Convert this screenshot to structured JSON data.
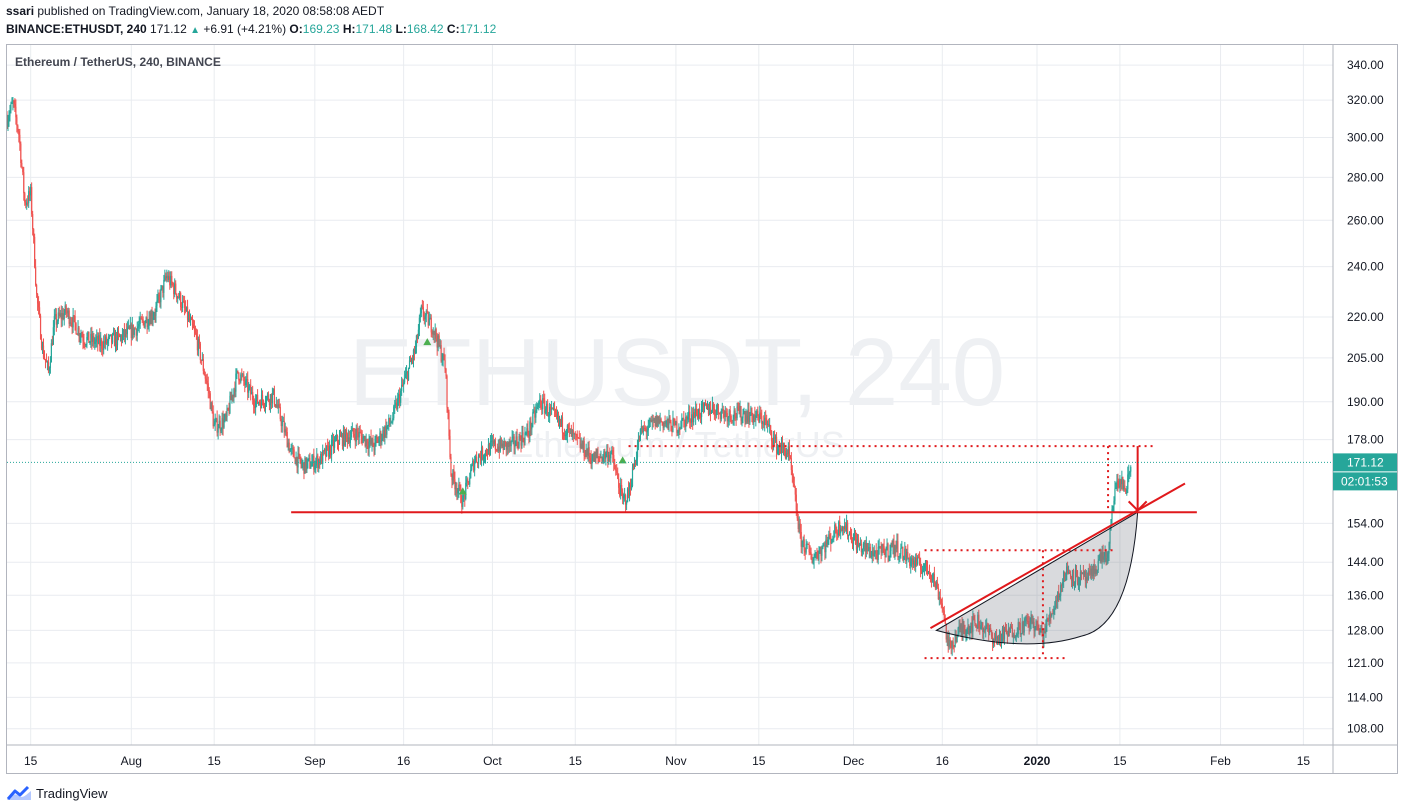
{
  "publish": {
    "user": "ssari",
    "text": "published on TradingView.com, January 18, 2020 08:58:08 AEDT"
  },
  "quote": {
    "symbol": "BINANCE:ETHUSDT, 240",
    "last": "171.12",
    "change": "+6.91 (+4.21%)",
    "o_label": "O:",
    "o": "169.23",
    "h_label": "H:",
    "h": "171.48",
    "l_label": "L:",
    "l": "168.42",
    "c_label": "C:",
    "c": "171.12"
  },
  "chart_title": "Ethereum / TetherUS, 240, BINANCE",
  "watermark": {
    "main": "ETHUSDT, 240",
    "sub": "Ethereum / TetherUS"
  },
  "price_tag": {
    "price": "171.12",
    "timer": "02:01:53"
  },
  "footer": {
    "brand": "TradingView"
  },
  "colors": {
    "up": "#26a69a",
    "down": "#ef5350",
    "drawing": "#e0191c",
    "tag": "#26a69a"
  },
  "chart_data": {
    "type": "candlestick",
    "title": "Ethereum / TetherUS, 240, BINANCE",
    "y_scale": "log",
    "ylim": [
      105,
      352
    ],
    "y_ticks": [
      340,
      320,
      300,
      280,
      260,
      240,
      220,
      205,
      190,
      178,
      171.12,
      154,
      144,
      136,
      128,
      121,
      114,
      108
    ],
    "y_tick_labels": [
      "340.00",
      "320.00",
      "300.00",
      "280.00",
      "260.00",
      "240.00",
      "220.00",
      "205.00",
      "190.00",
      "178.00",
      "171.12",
      "154.00",
      "144.00",
      "136.00",
      "128.00",
      "121.00",
      "114.00",
      "108.00"
    ],
    "x_range": [
      "2019-07-11",
      "2020-02-20"
    ],
    "x_ticks": [
      {
        "date": "2019-07-15",
        "label": "15"
      },
      {
        "date": "2019-08-01",
        "label": "Aug"
      },
      {
        "date": "2019-08-15",
        "label": "15"
      },
      {
        "date": "2019-09-01",
        "label": "Sep"
      },
      {
        "date": "2019-09-16",
        "label": "16"
      },
      {
        "date": "2019-10-01",
        "label": "Oct"
      },
      {
        "date": "2019-10-15",
        "label": "15"
      },
      {
        "date": "2019-11-01",
        "label": "Nov"
      },
      {
        "date": "2019-11-15",
        "label": "15"
      },
      {
        "date": "2019-12-01",
        "label": "Dec"
      },
      {
        "date": "2019-12-16",
        "label": "16"
      },
      {
        "date": "2020-01-01",
        "label": "2020",
        "bold": true
      },
      {
        "date": "2020-01-15",
        "label": "15"
      },
      {
        "date": "2020-02-01",
        "label": "Feb"
      },
      {
        "date": "2020-02-15",
        "label": "15"
      }
    ],
    "price_path": [
      [
        "2019-07-11",
        310
      ],
      [
        "2019-07-12",
        318
      ],
      [
        "2019-07-13",
        302
      ],
      [
        "2019-07-14",
        268
      ],
      [
        "2019-07-15",
        272
      ],
      [
        "2019-07-16",
        228
      ],
      [
        "2019-07-17",
        208
      ],
      [
        "2019-07-18",
        200
      ],
      [
        "2019-07-19",
        218
      ],
      [
        "2019-07-21",
        222
      ],
      [
        "2019-07-24",
        212
      ],
      [
        "2019-07-27",
        210
      ],
      [
        "2019-07-30",
        212
      ],
      [
        "2019-08-02",
        216
      ],
      [
        "2019-08-05",
        222
      ],
      [
        "2019-08-07",
        236
      ],
      [
        "2019-08-09",
        228
      ],
      [
        "2019-08-12",
        212
      ],
      [
        "2019-08-14",
        194
      ],
      [
        "2019-08-15",
        182
      ],
      [
        "2019-08-17",
        184
      ],
      [
        "2019-08-19",
        200
      ],
      [
        "2019-08-22",
        190
      ],
      [
        "2019-08-25",
        192
      ],
      [
        "2019-08-28",
        174
      ],
      [
        "2019-08-30",
        170
      ],
      [
        "2019-09-02",
        172
      ],
      [
        "2019-09-05",
        178
      ],
      [
        "2019-09-08",
        180
      ],
      [
        "2019-09-11",
        176
      ],
      [
        "2019-09-14",
        184
      ],
      [
        "2019-09-16",
        196
      ],
      [
        "2019-09-18",
        208
      ],
      [
        "2019-09-19",
        222
      ],
      [
        "2019-09-21",
        216
      ],
      [
        "2019-09-23",
        202
      ],
      [
        "2019-09-24",
        168
      ],
      [
        "2019-09-26",
        160
      ],
      [
        "2019-09-28",
        172
      ],
      [
        "2019-10-01",
        176
      ],
      [
        "2019-10-04",
        176
      ],
      [
        "2019-10-07",
        180
      ],
      [
        "2019-10-09",
        190
      ],
      [
        "2019-10-12",
        184
      ],
      [
        "2019-10-15",
        178
      ],
      [
        "2019-10-18",
        172
      ],
      [
        "2019-10-21",
        174
      ],
      [
        "2019-10-23",
        160
      ],
      [
        "2019-10-24",
        162
      ],
      [
        "2019-10-26",
        180
      ],
      [
        "2019-10-29",
        184
      ],
      [
        "2019-11-01",
        182
      ],
      [
        "2019-11-04",
        186
      ],
      [
        "2019-11-07",
        188
      ],
      [
        "2019-11-10",
        186
      ],
      [
        "2019-11-13",
        186
      ],
      [
        "2019-11-16",
        184
      ],
      [
        "2019-11-18",
        176
      ],
      [
        "2019-11-20",
        174
      ],
      [
        "2019-11-22",
        150
      ],
      [
        "2019-11-24",
        145
      ],
      [
        "2019-11-26",
        148
      ],
      [
        "2019-11-29",
        154
      ],
      [
        "2019-12-02",
        148
      ],
      [
        "2019-12-05",
        146
      ],
      [
        "2019-12-08",
        148
      ],
      [
        "2019-12-11",
        144
      ],
      [
        "2019-12-14",
        142
      ],
      [
        "2019-12-16",
        134
      ],
      [
        "2019-12-17",
        124
      ],
      [
        "2019-12-19",
        128
      ],
      [
        "2019-12-22",
        130
      ],
      [
        "2019-12-25",
        126
      ],
      [
        "2019-12-28",
        128
      ],
      [
        "2019-12-31",
        130
      ],
      [
        "2020-01-02",
        127
      ],
      [
        "2020-01-04",
        134
      ],
      [
        "2020-01-06",
        142
      ],
      [
        "2020-01-08",
        140
      ],
      [
        "2020-01-10",
        140
      ],
      [
        "2020-01-12",
        146
      ],
      [
        "2020-01-13",
        145
      ],
      [
        "2020-01-14",
        162
      ],
      [
        "2020-01-15",
        166
      ],
      [
        "2020-01-16",
        163
      ],
      [
        "2020-01-17",
        171
      ]
    ],
    "annotations": {
      "support_line": {
        "price": 157,
        "from": "2019-08-28",
        "to": "2020-01-28"
      },
      "rising_trendline": {
        "from": [
          "2019-12-14",
          128.5
        ],
        "to": [
          "2020-01-26",
          165
        ]
      },
      "resistance_dotted": {
        "price": 176,
        "from": "2019-10-24",
        "to": "2020-01-21"
      },
      "dotted_high": {
        "price": 147,
        "from": "2019-12-13",
        "to": "2020-01-14"
      },
      "dotted_low": {
        "price": 122,
        "from": "2019-12-13",
        "to": "2020-01-06"
      },
      "projection_arrow": {
        "from": [
          "2020-01-18",
          176
        ],
        "to": [
          "2020-01-18",
          157.5
        ]
      },
      "rounding_bottom_arc": {
        "from": [
          "2019-12-15",
          128
        ],
        "bottom": [
          "2019-12-30",
          125
        ],
        "to": [
          "2020-01-18",
          157
        ]
      }
    }
  }
}
